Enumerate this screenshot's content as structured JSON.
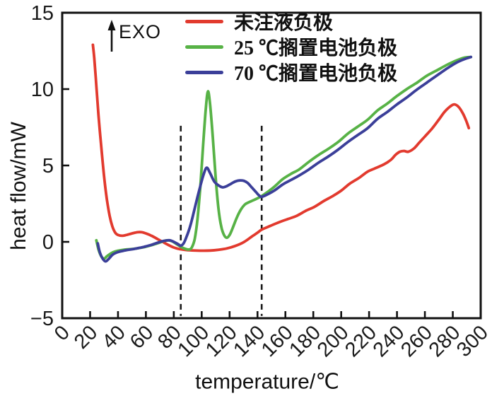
{
  "figure": {
    "exo_label": "EXO"
  },
  "chart_data": {
    "type": "line",
    "title": "",
    "xlabel": "temperature/℃",
    "ylabel": "heat flow/mW",
    "xlim": [
      0,
      300
    ],
    "ylim": [
      -5,
      15
    ],
    "xticks": [
      0,
      20,
      40,
      60,
      80,
      100,
      120,
      140,
      160,
      180,
      200,
      220,
      240,
      260,
      280,
      300
    ],
    "xtick_labels": [
      "0",
      "20",
      "40",
      "60",
      "80",
      "100",
      "120",
      "140",
      "160",
      "180",
      "200",
      "220",
      "240",
      "260",
      "280",
      "300"
    ],
    "yticks": [
      -5,
      0,
      5,
      10,
      15
    ],
    "ytick_labels": [
      "−5",
      "0",
      "5",
      "10",
      "15"
    ],
    "grid": false,
    "legend_position": "top-center-inside",
    "axis_color": "#111111",
    "annotations": {
      "exo": "EXO",
      "dashed_vlines": [
        {
          "x": 85,
          "y_from": -4.85,
          "y_to": 7.6
        },
        {
          "x": 143,
          "y_from": -4.85,
          "y_to": 7.6
        }
      ]
    },
    "series": [
      {
        "id": "uninjected-anode",
        "name": "未注液负极",
        "color": "#e23a2e",
        "points": [
          [
            22,
            12.9
          ],
          [
            23,
            12.0
          ],
          [
            24.5,
            10.2
          ],
          [
            26,
            8.3
          ],
          [
            28,
            6.2
          ],
          [
            30,
            4.3
          ],
          [
            32,
            2.8
          ],
          [
            34,
            1.7
          ],
          [
            36,
            1.0
          ],
          [
            38,
            0.6
          ],
          [
            40,
            0.45
          ],
          [
            43,
            0.4
          ],
          [
            46,
            0.45
          ],
          [
            50,
            0.55
          ],
          [
            54,
            0.63
          ],
          [
            57,
            0.63
          ],
          [
            60,
            0.55
          ],
          [
            64,
            0.4
          ],
          [
            68,
            0.2
          ],
          [
            72,
            0.0
          ],
          [
            76,
            -0.2
          ],
          [
            80,
            -0.37
          ],
          [
            84,
            -0.47
          ],
          [
            88,
            -0.53
          ],
          [
            93,
            -0.56
          ],
          [
            100,
            -0.58
          ],
          [
            106,
            -0.57
          ],
          [
            112,
            -0.52
          ],
          [
            118,
            -0.43
          ],
          [
            124,
            -0.27
          ],
          [
            130,
            -0.03
          ],
          [
            136,
            0.35
          ],
          [
            140,
            0.6
          ],
          [
            143,
            0.8
          ],
          [
            148,
            1.0
          ],
          [
            156,
            1.3
          ],
          [
            162,
            1.5
          ],
          [
            168,
            1.7
          ],
          [
            175,
            2.05
          ],
          [
            181,
            2.3
          ],
          [
            188,
            2.7
          ],
          [
            194,
            3.0
          ],
          [
            200,
            3.35
          ],
          [
            206,
            3.8
          ],
          [
            213,
            4.2
          ],
          [
            219,
            4.6
          ],
          [
            224,
            4.8
          ],
          [
            229,
            5.0
          ],
          [
            233,
            5.2
          ],
          [
            236,
            5.4
          ],
          [
            239,
            5.7
          ],
          [
            242,
            5.9
          ],
          [
            245,
            5.95
          ],
          [
            248,
            5.9
          ],
          [
            252,
            6.1
          ],
          [
            256,
            6.5
          ],
          [
            260,
            6.9
          ],
          [
            265,
            7.4
          ],
          [
            270,
            8.0
          ],
          [
            274,
            8.5
          ],
          [
            278,
            8.85
          ],
          [
            281,
            9.0
          ],
          [
            284,
            8.85
          ],
          [
            287,
            8.45
          ],
          [
            289.5,
            7.95
          ],
          [
            291.5,
            7.45
          ]
        ]
      },
      {
        "id": "25c-stored-battery-anode",
        "name": "25 ℃搁置电池负极",
        "color": "#57b246",
        "points": [
          [
            24.5,
            0.1
          ],
          [
            26,
            -0.5
          ],
          [
            28,
            -0.95
          ],
          [
            30,
            -1.1
          ],
          [
            32,
            -0.95
          ],
          [
            35,
            -0.75
          ],
          [
            38,
            -0.63
          ],
          [
            42,
            -0.55
          ],
          [
            46,
            -0.5
          ],
          [
            50,
            -0.47
          ],
          [
            54,
            -0.42
          ],
          [
            58,
            -0.36
          ],
          [
            62,
            -0.27
          ],
          [
            66,
            -0.16
          ],
          [
            70,
            -0.04
          ],
          [
            73,
            0.06
          ],
          [
            76,
            0.1
          ],
          [
            79,
            0.03
          ],
          [
            82,
            -0.15
          ],
          [
            85,
            -0.32
          ],
          [
            88,
            -0.45
          ],
          [
            91,
            -0.5
          ],
          [
            93,
            -0.35
          ],
          [
            95,
            0.2
          ],
          [
            97,
            1.5
          ],
          [
            99,
            3.6
          ],
          [
            101,
            6.3
          ],
          [
            103,
            8.8
          ],
          [
            104.5,
            9.85
          ],
          [
            106,
            9.0
          ],
          [
            108,
            6.8
          ],
          [
            110,
            4.2
          ],
          [
            112,
            2.2
          ],
          [
            114,
            1.0
          ],
          [
            116,
            0.45
          ],
          [
            118,
            0.27
          ],
          [
            120,
            0.45
          ],
          [
            122,
            0.85
          ],
          [
            125,
            1.55
          ],
          [
            128,
            2.1
          ],
          [
            131,
            2.45
          ],
          [
            134,
            2.6
          ],
          [
            137,
            2.72
          ],
          [
            140,
            2.85
          ],
          [
            143,
            3.0
          ],
          [
            147,
            3.25
          ],
          [
            152,
            3.6
          ],
          [
            158,
            4.1
          ],
          [
            164,
            4.45
          ],
          [
            170,
            4.75
          ],
          [
            177,
            5.25
          ],
          [
            184,
            5.7
          ],
          [
            191,
            6.1
          ],
          [
            198,
            6.55
          ],
          [
            205,
            7.1
          ],
          [
            212,
            7.55
          ],
          [
            219,
            8.0
          ],
          [
            226,
            8.6
          ],
          [
            233,
            9.05
          ],
          [
            240,
            9.55
          ],
          [
            247,
            10.0
          ],
          [
            254,
            10.4
          ],
          [
            261,
            10.85
          ],
          [
            268,
            11.2
          ],
          [
            275,
            11.55
          ],
          [
            282,
            11.85
          ],
          [
            288,
            12.05
          ],
          [
            293,
            12.1
          ]
        ]
      },
      {
        "id": "70c-stored-battery-anode",
        "name": "70 ℃搁置电池负极",
        "color": "#3b3f99",
        "points": [
          [
            25.5,
            -0.1
          ],
          [
            27,
            -0.7
          ],
          [
            29,
            -1.1
          ],
          [
            31,
            -1.28
          ],
          [
            33,
            -1.15
          ],
          [
            36,
            -0.85
          ],
          [
            39,
            -0.7
          ],
          [
            43,
            -0.6
          ],
          [
            47,
            -0.53
          ],
          [
            51,
            -0.47
          ],
          [
            55,
            -0.4
          ],
          [
            59,
            -0.32
          ],
          [
            63,
            -0.22
          ],
          [
            67,
            -0.1
          ],
          [
            71,
            0.02
          ],
          [
            74,
            0.08
          ],
          [
            77,
            0.1
          ],
          [
            80,
            0.0
          ],
          [
            83,
            -0.15
          ],
          [
            85,
            -0.25
          ],
          [
            87,
            -0.1
          ],
          [
            89,
            0.3
          ],
          [
            92,
            1.1
          ],
          [
            95,
            2.2
          ],
          [
            98,
            3.3
          ],
          [
            101,
            4.3
          ],
          [
            103.5,
            4.85
          ],
          [
            106,
            4.5
          ],
          [
            109,
            3.95
          ],
          [
            112,
            3.7
          ],
          [
            115,
            3.57
          ],
          [
            118,
            3.65
          ],
          [
            121,
            3.8
          ],
          [
            124,
            3.95
          ],
          [
            127,
            4.02
          ],
          [
            130,
            4.0
          ],
          [
            133,
            3.85
          ],
          [
            136,
            3.55
          ],
          [
            139,
            3.25
          ],
          [
            141,
            3.05
          ],
          [
            143,
            2.95
          ],
          [
            147,
            3.1
          ],
          [
            152,
            3.35
          ],
          [
            158,
            3.75
          ],
          [
            164,
            4.05
          ],
          [
            170,
            4.35
          ],
          [
            177,
            4.75
          ],
          [
            184,
            5.2
          ],
          [
            191,
            5.6
          ],
          [
            198,
            6.05
          ],
          [
            205,
            6.55
          ],
          [
            212,
            7.0
          ],
          [
            219,
            7.45
          ],
          [
            226,
            8.05
          ],
          [
            233,
            8.5
          ],
          [
            240,
            9.0
          ],
          [
            247,
            9.45
          ],
          [
            254,
            9.95
          ],
          [
            261,
            10.4
          ],
          [
            268,
            10.85
          ],
          [
            275,
            11.3
          ],
          [
            282,
            11.7
          ],
          [
            288,
            11.95
          ],
          [
            293,
            12.1
          ]
        ]
      }
    ]
  }
}
